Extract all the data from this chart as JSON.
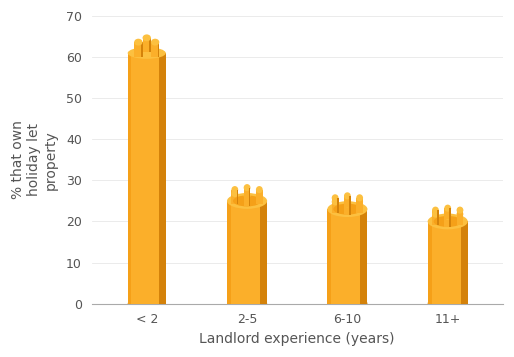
{
  "categories": [
    "< 2",
    "2-5",
    "6-10",
    "11+"
  ],
  "values": [
    61,
    25,
    23,
    20
  ],
  "bar_color_main": "#FBAF2A",
  "bar_color_dark": "#D4820A",
  "bar_color_mid": "#F5A018",
  "bar_color_light": "#FDD070",
  "bar_color_top": "#FCC040",
  "background_color": "#ffffff",
  "ylabel": "% that own\nholiday let\nproperty",
  "xlabel": "Landlord experience (years)",
  "yticks": [
    0,
    10,
    20,
    30,
    40,
    50,
    60,
    70
  ],
  "ylim": [
    0,
    70
  ],
  "ylabel_fontsize": 10,
  "xlabel_fontsize": 10,
  "tick_fontsize": 9,
  "text_color": "#555555"
}
